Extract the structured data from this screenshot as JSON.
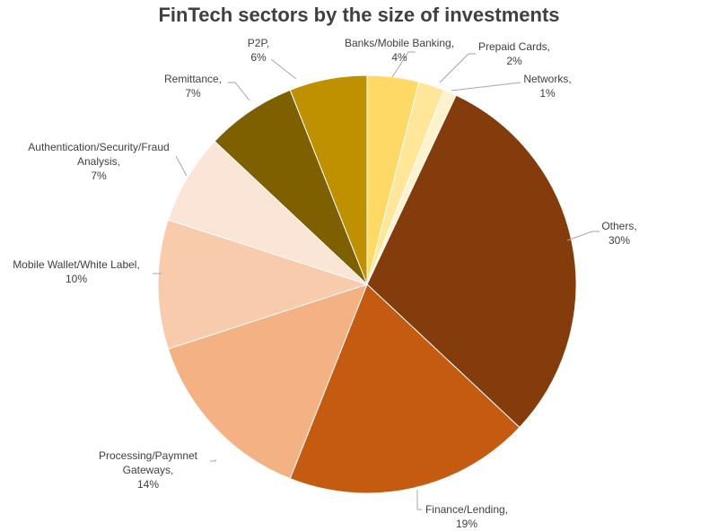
{
  "chart_data": {
    "type": "pie",
    "title": "FinTech sectors by the size of investments",
    "categories": [
      "Banks/Mobile Banking,",
      "Prepaid Cards,",
      "Networks,",
      "Others,",
      "Finance/Lending,",
      "Processing/Paymnet Gateways,",
      "Mobile Wallet/White Label,",
      "Authentication/Security/Fraud Analysis,",
      "Remittance,",
      "P2P,"
    ],
    "values": [
      4,
      2,
      1,
      30,
      19,
      14,
      10,
      7,
      7,
      6
    ],
    "value_labels": [
      "4%",
      "2%",
      "1%",
      "30%",
      "19%",
      "14%",
      "10%",
      "7%",
      "7%",
      "6%"
    ],
    "colors": [
      "#FFD966",
      "#FFE699",
      "#FFF2CC",
      "#843C0C",
      "#C55A11",
      "#F4B183",
      "#F8CBAD",
      "#FBE5D6",
      "#7F6000",
      "#BF9000"
    ]
  }
}
